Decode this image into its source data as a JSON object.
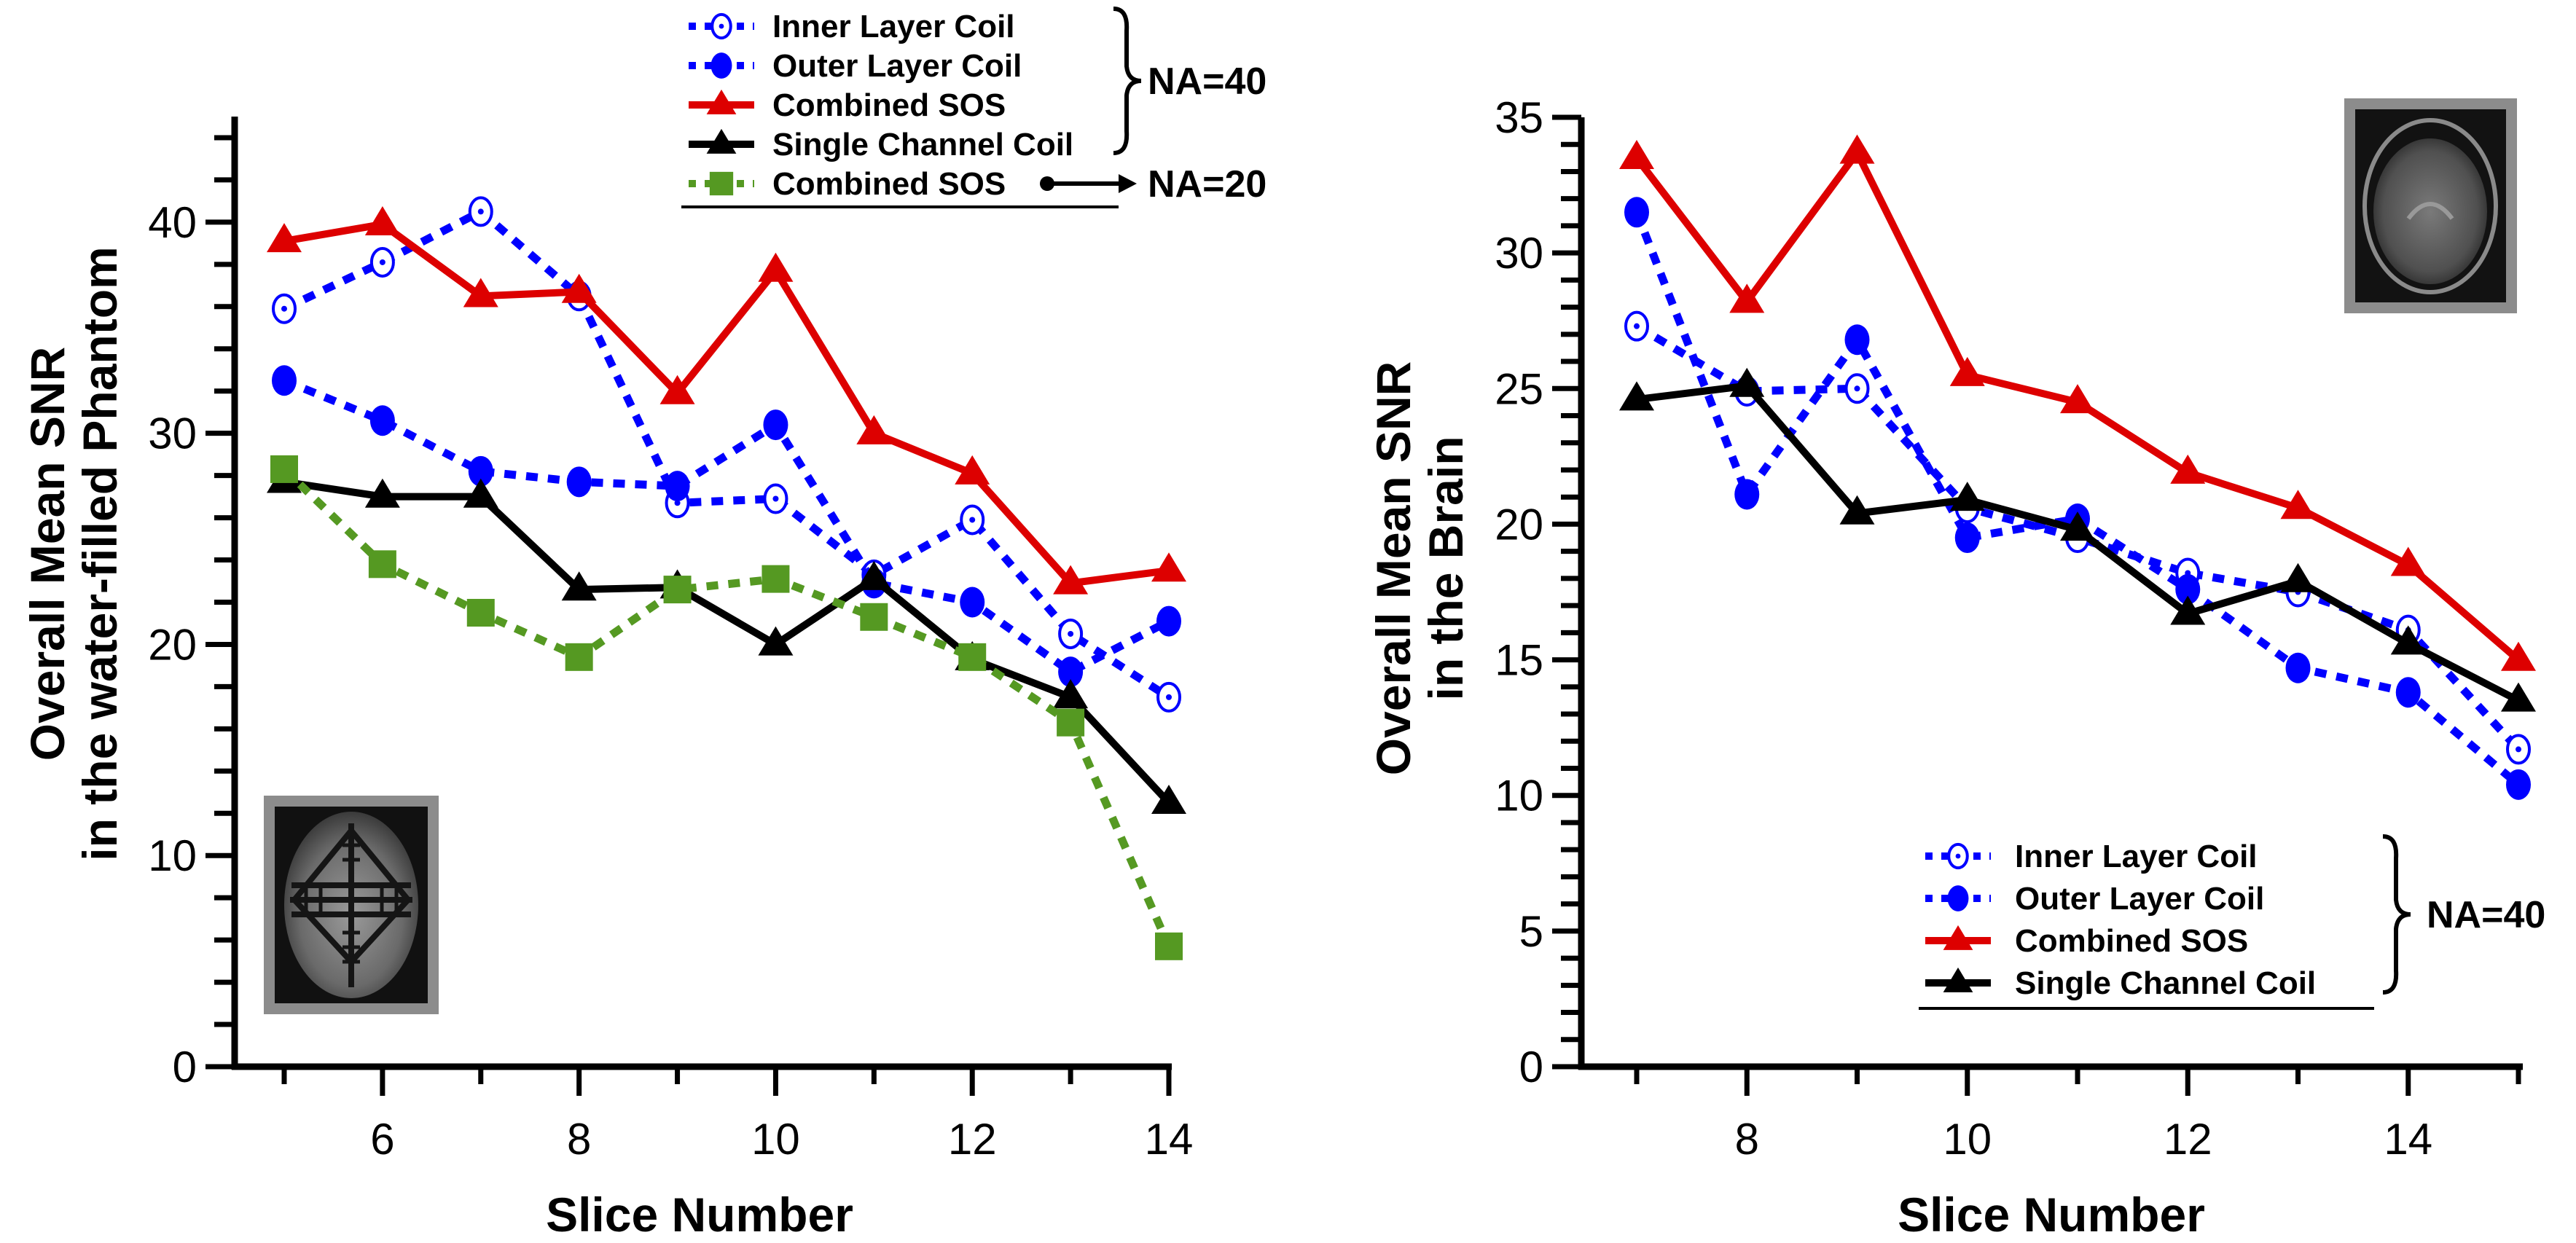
{
  "chart_data": [
    {
      "type": "line",
      "panel": "left",
      "title": "",
      "xlabel": "Slice Number",
      "ylabel_lines": [
        "Overall Mean SNR",
        "in the water-filled Phantom"
      ],
      "xlim": [
        5,
        14
      ],
      "ylim": [
        0,
        45
      ],
      "x_ticks": [
        6,
        8,
        10,
        12,
        14
      ],
      "x_minor_ticks": [
        5,
        7,
        9,
        11,
        13
      ],
      "y_ticks": [
        0,
        10,
        20,
        30,
        40
      ],
      "y_minor_step": 2,
      "grid": false,
      "x": [
        5,
        6,
        7,
        8,
        9,
        10,
        11,
        12,
        13,
        14
      ],
      "series": [
        {
          "name": "Inner Layer Coil",
          "key": "inner",
          "color": "#0000ff",
          "style": "dotted",
          "marker": "open-circle-dot",
          "values": [
            35.9,
            38.1,
            40.5,
            36.5,
            26.7,
            26.9,
            23.3,
            25.9,
            20.5,
            17.5
          ]
        },
        {
          "name": "Outer Layer Coil",
          "key": "outer",
          "color": "#0000ff",
          "style": "dotted",
          "marker": "filled-circle",
          "values": [
            32.5,
            30.6,
            28.2,
            27.7,
            27.5,
            30.4,
            22.9,
            22.0,
            18.7,
            21.1
          ]
        },
        {
          "name": "Combined SOS",
          "key": "sos",
          "color": "#dd0000",
          "style": "solid",
          "marker": "triangle",
          "values": [
            39.1,
            39.9,
            36.5,
            36.7,
            31.9,
            37.7,
            30.0,
            28.1,
            22.9,
            23.5
          ]
        },
        {
          "name": "Single Channel Coil",
          "key": "single",
          "color": "#000000",
          "style": "solid",
          "marker": "triangle",
          "values": [
            27.7,
            27.0,
            27.0,
            22.6,
            22.7,
            20.0,
            23.1,
            19.3,
            17.5,
            12.5
          ]
        },
        {
          "name": "Combined SOS",
          "key": "sos20",
          "color": "#559922",
          "style": "dotted",
          "marker": "square",
          "values": [
            28.3,
            23.8,
            21.5,
            19.4,
            22.6,
            23.1,
            21.3,
            19.4,
            16.3,
            5.7
          ]
        }
      ],
      "legend": {
        "placement": "top-right",
        "entries": [
          "Inner Layer Coil",
          "Outer Layer Coil",
          "Combined SOS",
          "Single Channel Coil",
          "Combined SOS"
        ],
        "group_labels": [
          "NA=40",
          "NA=20"
        ]
      },
      "inset": "water-filled phantom MR image (bottom-left)"
    },
    {
      "type": "line",
      "panel": "right",
      "title": "",
      "xlabel": "Slice Number",
      "ylabel_lines": [
        "Overall Mean SNR",
        "in the Brain"
      ],
      "xlim": [
        7,
        15
      ],
      "ylim": [
        0,
        35
      ],
      "x_ticks": [
        8,
        10,
        12,
        14
      ],
      "x_minor_ticks": [
        7,
        9,
        11,
        13,
        15
      ],
      "y_ticks": [
        0,
        5,
        10,
        15,
        20,
        25,
        30,
        35
      ],
      "y_minor_step": 1,
      "grid": false,
      "x": [
        7,
        8,
        9,
        10,
        11,
        12,
        13,
        14,
        15
      ],
      "series": [
        {
          "name": "Inner Layer Coil",
          "key": "inner",
          "color": "#0000ff",
          "style": "dotted",
          "marker": "open-circle-dot",
          "values": [
            27.3,
            24.9,
            25.0,
            20.6,
            19.5,
            18.2,
            17.5,
            16.1,
            11.7
          ]
        },
        {
          "name": "Outer Layer Coil",
          "key": "outer",
          "color": "#0000ff",
          "style": "dotted",
          "marker": "filled-circle",
          "values": [
            31.5,
            21.1,
            26.8,
            19.5,
            20.2,
            17.6,
            14.7,
            13.8,
            10.4
          ]
        },
        {
          "name": "Combined SOS",
          "key": "sos",
          "color": "#dd0000",
          "style": "solid",
          "marker": "triangle",
          "values": [
            33.5,
            28.2,
            33.7,
            25.5,
            24.5,
            21.9,
            20.6,
            18.5,
            15.0
          ]
        },
        {
          "name": "Single Channel Coil",
          "key": "single",
          "color": "#000000",
          "style": "solid",
          "marker": "triangle",
          "values": [
            24.6,
            25.1,
            20.4,
            20.9,
            19.8,
            16.7,
            17.9,
            15.6,
            13.5
          ]
        }
      ],
      "legend": {
        "placement": "bottom-right",
        "entries": [
          "Inner Layer Coil",
          "Outer Layer Coil",
          "Combined SOS",
          "Single Channel Coil"
        ],
        "group_labels": [
          "NA=40"
        ]
      },
      "inset": "brain MR image (top-right)"
    }
  ]
}
